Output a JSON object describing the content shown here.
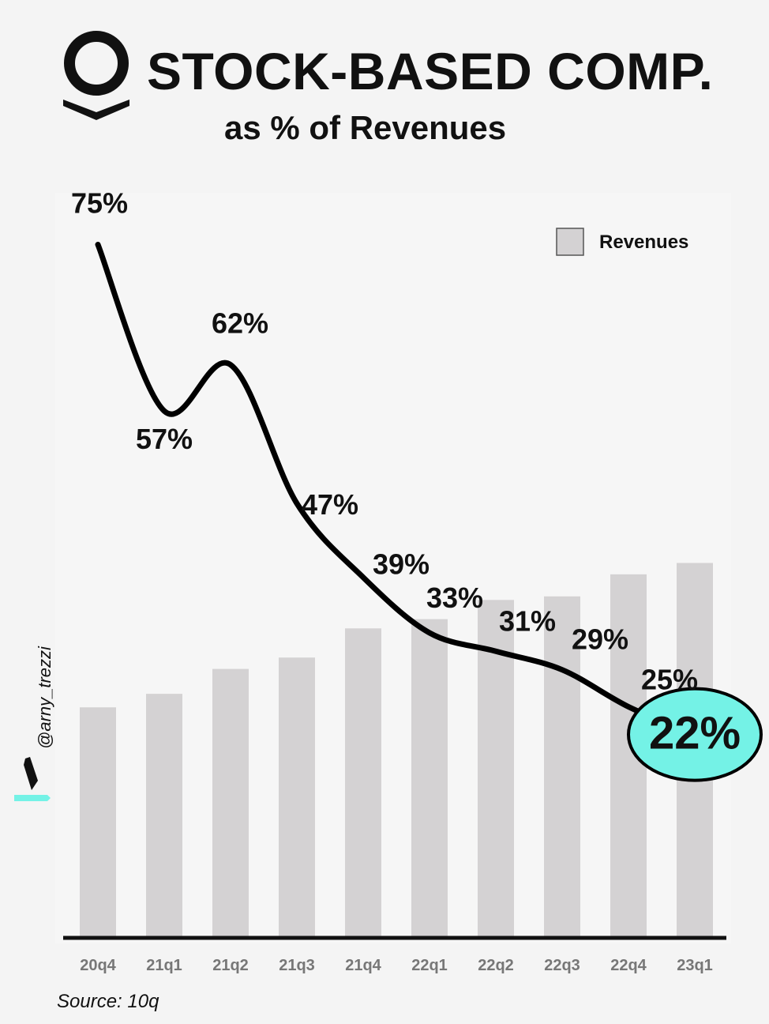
{
  "header": {
    "title": "STOCK-BASED COMP.",
    "subtitle": "as % of Revenues",
    "logo": "palantir-logo"
  },
  "watermark": {
    "handle": "@arny_trezzi",
    "icon": "pen-nib-icon"
  },
  "source": "Source: 10q",
  "chart_data": {
    "type": "bar",
    "categories": [
      "20q4",
      "21q1",
      "21q2",
      "21q3",
      "21q4",
      "22q1",
      "22q2",
      "22q3",
      "22q4",
      "23q1"
    ],
    "series": [
      {
        "name": "Revenues",
        "type": "bar",
        "values": [
          322,
          341,
          376,
          392,
          433,
          446,
          473,
          478,
          509,
          525
        ],
        "color": "#d4d2d3"
      },
      {
        "name": "",
        "type": "line",
        "values": [
          75,
          57,
          62,
          47,
          39,
          33,
          31,
          29,
          25,
          22
        ],
        "labels": [
          "75%",
          "57%",
          "62%",
          "47%",
          "39%",
          "33%",
          "31%",
          "29%",
          "25%",
          "22%"
        ],
        "color": "#000000"
      }
    ],
    "legend": {
      "entries": [
        "Revenues"
      ],
      "position": "top-right"
    },
    "highlight": {
      "index": 9,
      "color": "#74f2e6"
    },
    "grid": false
  }
}
